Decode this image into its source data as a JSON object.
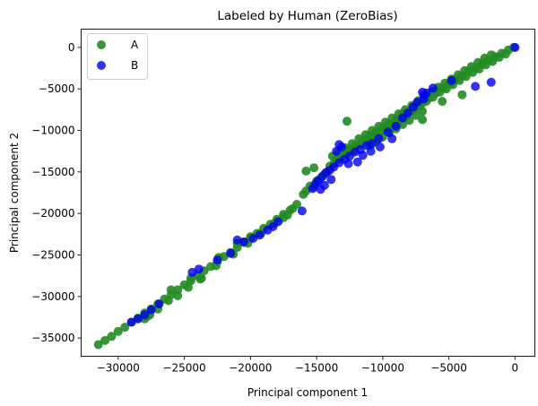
{
  "chart_data": {
    "type": "scatter",
    "title": "Labeled by Human (ZeroBias)",
    "xlabel": "Principal component 1",
    "ylabel": "Principal component 2",
    "xlim": [
      -32800,
      1500
    ],
    "ylim": [
      -37200,
      2200
    ],
    "xticks": [
      -30000,
      -25000,
      -20000,
      -15000,
      -10000,
      -5000,
      0
    ],
    "xtick_labels": [
      "−30000",
      "−25000",
      "−20000",
      "−15000",
      "−10000",
      "−5000",
      "0"
    ],
    "yticks": [
      0,
      -5000,
      -10000,
      -15000,
      -20000,
      -25000,
      -30000,
      -35000
    ],
    "ytick_labels": [
      "0",
      "−5000",
      "−10000",
      "−15000",
      "−20000",
      "−25000",
      "−30000",
      "−35000"
    ],
    "grid": false,
    "legend": "upper-left",
    "series": [
      {
        "name": "A",
        "color": "#228b22",
        "alpha": 0.9,
        "points": [
          [
            -31500,
            -35800
          ],
          [
            -31000,
            -35300
          ],
          [
            -30500,
            -34800
          ],
          [
            -30000,
            -34200
          ],
          [
            -29500,
            -33700
          ],
          [
            -29000,
            -33100
          ],
          [
            -28500,
            -32600
          ],
          [
            -28000,
            -32000
          ],
          [
            -27500,
            -31500
          ],
          [
            -27000,
            -30900
          ],
          [
            -26500,
            -30300
          ],
          [
            -26000,
            -29800
          ],
          [
            -25500,
            -29200
          ],
          [
            -25000,
            -28600
          ],
          [
            -24500,
            -28100
          ],
          [
            -24000,
            -27500
          ],
          [
            -23500,
            -26900
          ],
          [
            -23000,
            -26400
          ],
          [
            -22500,
            -25800
          ],
          [
            -22000,
            -25200
          ],
          [
            -21500,
            -24700
          ],
          [
            -21000,
            -24100
          ],
          [
            -20500,
            -23500
          ],
          [
            -20000,
            -23000
          ],
          [
            -19500,
            -22400
          ],
          [
            -19000,
            -21800
          ],
          [
            -18500,
            -21300
          ],
          [
            -18000,
            -20700
          ],
          [
            -17500,
            -20100
          ],
          [
            -17000,
            -19600
          ],
          [
            -16500,
            -18900
          ],
          [
            -16000,
            -17700
          ],
          [
            -15500,
            -16700
          ],
          [
            -15000,
            -16100
          ],
          [
            -14500,
            -15400
          ],
          [
            -14000,
            -14300
          ],
          [
            -13500,
            -13500
          ],
          [
            -13000,
            -12900
          ],
          [
            -12500,
            -12300
          ],
          [
            -12000,
            -11800
          ],
          [
            -11500,
            -11200
          ],
          [
            -11000,
            -10700
          ],
          [
            -10500,
            -10200
          ],
          [
            -10000,
            -9700
          ],
          [
            -9500,
            -9200
          ],
          [
            -9000,
            -8700
          ],
          [
            -8500,
            -8200
          ],
          [
            -8000,
            -7700
          ],
          [
            -7500,
            -7200
          ],
          [
            -7000,
            -6700
          ],
          [
            -6500,
            -6100
          ],
          [
            -6000,
            -5500
          ],
          [
            -5500,
            -4900
          ],
          [
            -5000,
            -4400
          ],
          [
            -4500,
            -3900
          ],
          [
            -4000,
            -3400
          ],
          [
            -3500,
            -2900
          ],
          [
            -3000,
            -2500
          ],
          [
            -2500,
            -2000
          ],
          [
            -2000,
            -1500
          ],
          [
            -1500,
            -1100
          ],
          [
            -1000,
            -700
          ],
          [
            -500,
            -300
          ],
          [
            -100,
            0
          ],
          [
            -27000,
            -31500
          ],
          [
            -26200,
            -30500
          ],
          [
            -25500,
            -29900
          ],
          [
            -24700,
            -28900
          ],
          [
            -23800,
            -27900
          ],
          [
            -22600,
            -26300
          ],
          [
            -21300,
            -24900
          ],
          [
            -20200,
            -23600
          ],
          [
            -19200,
            -22400
          ],
          [
            -18200,
            -21200
          ],
          [
            -17200,
            -20200
          ],
          [
            -16800,
            -19400
          ],
          [
            -15800,
            -17300
          ],
          [
            -15200,
            -16800
          ],
          [
            -14800,
            -15900
          ],
          [
            -14200,
            -15000
          ],
          [
            -13700,
            -14000
          ],
          [
            -13200,
            -13400
          ],
          [
            -12700,
            -12800
          ],
          [
            -12200,
            -12400
          ],
          [
            -11700,
            -11700
          ],
          [
            -11200,
            -11200
          ],
          [
            -10700,
            -10800
          ],
          [
            -10200,
            -10200
          ],
          [
            -9700,
            -9800
          ],
          [
            -9200,
            -9300
          ],
          [
            -8700,
            -8800
          ],
          [
            -8200,
            -8300
          ],
          [
            -7700,
            -7600
          ],
          [
            -7200,
            -7100
          ],
          [
            -6700,
            -6500
          ],
          [
            -6200,
            -6000
          ],
          [
            -5700,
            -5400
          ],
          [
            -5200,
            -5000
          ],
          [
            -4700,
            -4500
          ],
          [
            -4200,
            -4000
          ],
          [
            -3700,
            -3500
          ],
          [
            -3200,
            -3000
          ],
          [
            -2700,
            -2600
          ],
          [
            -2200,
            -2100
          ],
          [
            -1700,
            -1700
          ],
          [
            -1200,
            -1200
          ],
          [
            -700,
            -800
          ],
          [
            -13800,
            -13100
          ],
          [
            -13300,
            -12600
          ],
          [
            -12800,
            -12100
          ],
          [
            -12300,
            -11600
          ],
          [
            -11800,
            -11000
          ],
          [
            -11300,
            -10500
          ],
          [
            -10800,
            -10000
          ],
          [
            -10300,
            -9500
          ],
          [
            -9800,
            -9000
          ],
          [
            -9300,
            -8500
          ],
          [
            -8800,
            -8000
          ],
          [
            -8300,
            -7500
          ],
          [
            -7800,
            -7000
          ],
          [
            -7300,
            -6400
          ],
          [
            -6800,
            -5900
          ],
          [
            -6300,
            -5300
          ],
          [
            -5800,
            -4800
          ],
          [
            -5300,
            -4300
          ],
          [
            -4800,
            -3800
          ],
          [
            -4300,
            -3300
          ],
          [
            -3800,
            -2800
          ],
          [
            -3300,
            -2300
          ],
          [
            -2800,
            -1800
          ],
          [
            -2300,
            -1300
          ],
          [
            -1800,
            -900
          ],
          [
            -11000,
            -11800
          ],
          [
            -10500,
            -11300
          ],
          [
            -10000,
            -10800
          ],
          [
            -9500,
            -10300
          ],
          [
            -9000,
            -9800
          ],
          [
            -8500,
            -9300
          ],
          [
            -8000,
            -8800
          ],
          [
            -7500,
            -8200
          ],
          [
            -7000,
            -7700
          ],
          [
            -12700,
            -8900
          ],
          [
            -8500,
            -8000
          ],
          [
            -7000,
            -8700
          ],
          [
            -5500,
            -6500
          ],
          [
            -4000,
            -5700
          ],
          [
            -15800,
            -14900
          ],
          [
            -15200,
            -14500
          ],
          [
            -20000,
            -22800
          ],
          [
            -21000,
            -23600
          ],
          [
            -28000,
            -32700
          ],
          [
            -27800,
            -32400
          ],
          [
            -27600,
            -32200
          ],
          [
            -26000,
            -29200
          ],
          [
            -24500,
            -27800
          ],
          [
            -23700,
            -27800
          ],
          [
            -22400,
            -25300
          ],
          [
            -17500,
            -20500
          ]
        ]
      },
      {
        "name": "B",
        "color": "#0000ee",
        "alpha": 0.8,
        "points": [
          [
            0,
            0
          ],
          [
            -1800,
            -4200
          ],
          [
            -3000,
            -4700
          ],
          [
            -4800,
            -4000
          ],
          [
            -6200,
            -4900
          ],
          [
            -6700,
            -5500
          ],
          [
            -6900,
            -5700
          ],
          [
            -7000,
            -5400
          ],
          [
            -6900,
            -6200
          ],
          [
            -7400,
            -6600
          ],
          [
            -7700,
            -7200
          ],
          [
            -8100,
            -7900
          ],
          [
            -8500,
            -8500
          ],
          [
            -9000,
            -9500
          ],
          [
            -9600,
            -10200
          ],
          [
            -10300,
            -11000
          ],
          [
            -10800,
            -11600
          ],
          [
            -11200,
            -11800
          ],
          [
            -11700,
            -12300
          ],
          [
            -12100,
            -12600
          ],
          [
            -12500,
            -13100
          ],
          [
            -12900,
            -13500
          ],
          [
            -13300,
            -13900
          ],
          [
            -13700,
            -14400
          ],
          [
            -14000,
            -14800
          ],
          [
            -14300,
            -15100
          ],
          [
            -14600,
            -15600
          ],
          [
            -14900,
            -16100
          ],
          [
            -15100,
            -16500
          ],
          [
            -15300,
            -17000
          ],
          [
            -13100,
            -12000
          ],
          [
            -13300,
            -11700
          ],
          [
            -13500,
            -12500
          ],
          [
            -12600,
            -14000
          ],
          [
            -11900,
            -13800
          ],
          [
            -11500,
            -13000
          ],
          [
            -10900,
            -12500
          ],
          [
            -10200,
            -12000
          ],
          [
            -9300,
            -11000
          ],
          [
            -13900,
            -15900
          ],
          [
            -14400,
            -16600
          ],
          [
            -14700,
            -17100
          ],
          [
            -16100,
            -19700
          ],
          [
            -21000,
            -23200
          ],
          [
            -20500,
            -23400
          ],
          [
            -19800,
            -23000
          ],
          [
            -19300,
            -22600
          ],
          [
            -18700,
            -22000
          ],
          [
            -18300,
            -21600
          ],
          [
            -17900,
            -21000
          ],
          [
            -21500,
            -24800
          ],
          [
            -22500,
            -25600
          ],
          [
            -23900,
            -26700
          ],
          [
            -24400,
            -27100
          ],
          [
            -26900,
            -30900
          ],
          [
            -27500,
            -31600
          ],
          [
            -28000,
            -32200
          ],
          [
            -28500,
            -32700
          ],
          [
            -29000,
            -33100
          ]
        ]
      }
    ]
  }
}
